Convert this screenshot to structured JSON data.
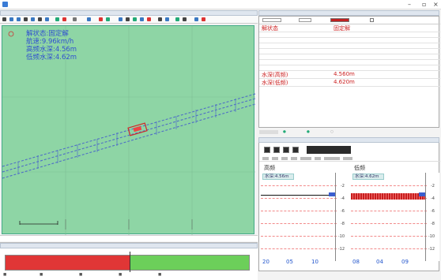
{
  "app": {
    "title": ""
  },
  "map_panel": {
    "header": ""
  },
  "overlay": {
    "solution": "解状态:固定解",
    "speed": "航速:9.96km/h",
    "hf_depth": "高频水深:4.56m",
    "lf_depth": "低频水深:4.62m"
  },
  "status_bar": {
    "items": [
      "",
      "",
      "",
      "",
      ""
    ]
  },
  "props": {
    "header": "",
    "rows": [
      {
        "k": "解状态",
        "v": "固定解",
        "big": true
      },
      {
        "k": "",
        "v": ""
      },
      {
        "k": "",
        "v": ""
      },
      {
        "k": "",
        "v": ""
      },
      {
        "k": "",
        "v": ""
      },
      {
        "k": "",
        "v": ""
      },
      {
        "k": "",
        "v": ""
      },
      {
        "k": "",
        "v": ""
      },
      {
        "k": "水深(高频)",
        "v": "4.560m",
        "big": true
      },
      {
        "k": "水深(低频)",
        "v": "4.620m",
        "big": true
      }
    ]
  },
  "sonar": {
    "header": "",
    "high_label": "高频",
    "low_label": "低频",
    "high_reading": "水深:4.56m",
    "low_reading": "水深:4.62m",
    "scale": [
      "-2",
      "-4",
      "-6",
      "-8",
      "-10",
      "-12",
      "-14"
    ],
    "high_footer": [
      "20",
      "05",
      "10"
    ],
    "low_footer": [
      "08",
      "04",
      "09"
    ]
  },
  "chart": {
    "header": "",
    "peak": "",
    "series_colors": [
      "#e03636",
      "#6ccf5a"
    ]
  }
}
